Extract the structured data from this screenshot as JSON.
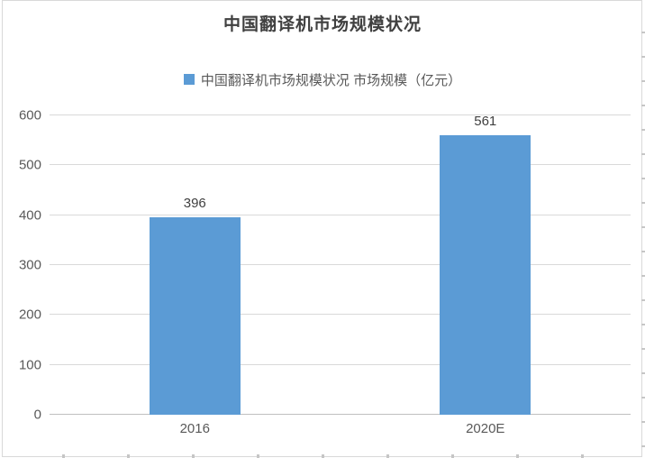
{
  "chart_data": {
    "type": "bar",
    "title": "中国翻译机市场规模状况",
    "legend": [
      {
        "label": "中国翻译机市场规模状况 市场规模（亿元）",
        "color": "#5B9BD5"
      }
    ],
    "legend_position": "top",
    "categories": [
      "2016",
      "2020E"
    ],
    "series": [
      {
        "name": "市场规模（亿元）",
        "values": [
          396,
          561
        ]
      }
    ],
    "value_labels": [
      "396",
      "561"
    ],
    "ylim": [
      0,
      600
    ],
    "yticks": [
      0,
      100,
      200,
      300,
      400,
      500,
      600
    ],
    "grid": "horizontal",
    "colors": {
      "bar": "#5B9BD5",
      "gridline": "#d9d9d9",
      "axis_line": "#bfbfbf",
      "title": "#404040",
      "value_label": "#404040",
      "tick_label": "#595959",
      "frame_border": "#d9d9d9"
    }
  }
}
